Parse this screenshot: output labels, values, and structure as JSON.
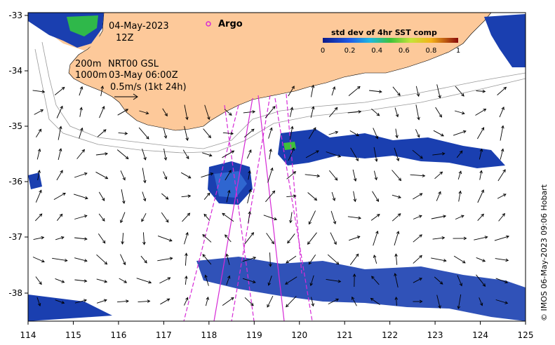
{
  "map": {
    "date": "04-May-2023",
    "time": "12Z",
    "depth_200": "200m",
    "depth_1000": "1000m",
    "model": "NRT00 GSL",
    "model_time": "03-May 06:00Z",
    "scale_label": "0.5m/s (1kt 24h)",
    "argo_label": "Argo",
    "copyright": "© IMOS 06-May-2023 09:06 Hobart",
    "lon_ticks": [
      "114",
      "115",
      "116",
      "117",
      "118",
      "119",
      "120",
      "121",
      "122",
      "123",
      "124",
      "125"
    ],
    "lat_ticks": [
      "-33",
      "-34",
      "-35",
      "-36",
      "-37",
      "-38"
    ],
    "colors": {
      "land": "#fdc99a",
      "sst_low": "#0b2aa8",
      "sst_mid": "#1f7be8",
      "sst_high": "#3ec23a",
      "tracks": "#d62ad6"
    }
  },
  "legend": {
    "title": "std dev of 4hr SST comp",
    "ticks": [
      "0",
      "0.2",
      "0.4",
      "0.6",
      "0.8",
      "1"
    ]
  }
}
